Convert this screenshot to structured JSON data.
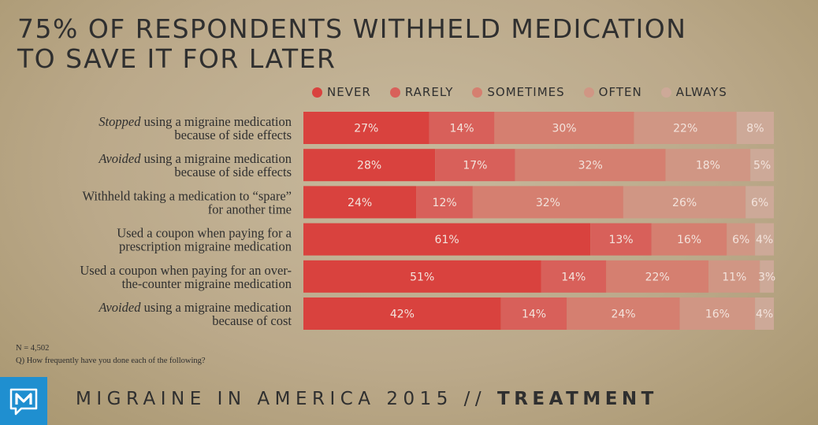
{
  "title_lines": [
    "75% OF RESPONDENTS WITHHELD MEDICATION",
    "TO SAVE IT FOR LATER"
  ],
  "notes": {
    "sample": "N = 4,502",
    "question": "Q) How frequently have you done each of the following?"
  },
  "footer": {
    "prefix": "MIGRAINE IN AMERICA 2015 //",
    "section": "TREATMENT"
  },
  "logo_icon": "m-speech-bubble-icon",
  "colors": {
    "never": "#d9423e",
    "rarely": "#d8605a",
    "sometimes": "#d57f70",
    "often": "#d09684",
    "always": "#cda998",
    "logo_bg": "#1f8fd0"
  },
  "chart_data": {
    "type": "bar",
    "orientation": "horizontal",
    "stacked": true,
    "legend_position": "top",
    "xlim": [
      0,
      100
    ],
    "value_format": "percent",
    "series_names": [
      "NEVER",
      "RARELY",
      "SOMETIMES",
      "OFTEN",
      "ALWAYS"
    ],
    "categories": [
      {
        "lines": [
          [
            {
              "t": "Stopped",
              "em": true
            },
            {
              "t": " using a migraine medication",
              "em": false
            }
          ],
          [
            {
              "t": "because of side effects",
              "em": false
            }
          ]
        ]
      },
      {
        "lines": [
          [
            {
              "t": "Avoided",
              "em": true
            },
            {
              "t": " using a migraine medication",
              "em": false
            }
          ],
          [
            {
              "t": "because of side effects",
              "em": false
            }
          ]
        ]
      },
      {
        "lines": [
          [
            {
              "t": "Withheld taking a medication to “spare”",
              "em": false
            }
          ],
          [
            {
              "t": "for another time",
              "em": false
            }
          ]
        ]
      },
      {
        "lines": [
          [
            {
              "t": "Used a coupon when paying for a",
              "em": false
            }
          ],
          [
            {
              "t": "prescription migraine medication",
              "em": false
            }
          ]
        ]
      },
      {
        "lines": [
          [
            {
              "t": "Used a coupon when paying for an over-",
              "em": false
            }
          ],
          [
            {
              "t": "the-counter migraine medication",
              "em": false
            }
          ]
        ]
      },
      {
        "lines": [
          [
            {
              "t": "Avoided",
              "em": true
            },
            {
              "t": " using a migraine medication",
              "em": false
            }
          ],
          [
            {
              "t": "because of cost",
              "em": false
            }
          ]
        ]
      }
    ],
    "values": [
      [
        27,
        14,
        30,
        22,
        8
      ],
      [
        28,
        17,
        32,
        18,
        5
      ],
      [
        24,
        12,
        32,
        26,
        6
      ],
      [
        61,
        13,
        16,
        6,
        4
      ],
      [
        51,
        14,
        22,
        11,
        3
      ],
      [
        42,
        14,
        24,
        16,
        4
      ]
    ]
  }
}
